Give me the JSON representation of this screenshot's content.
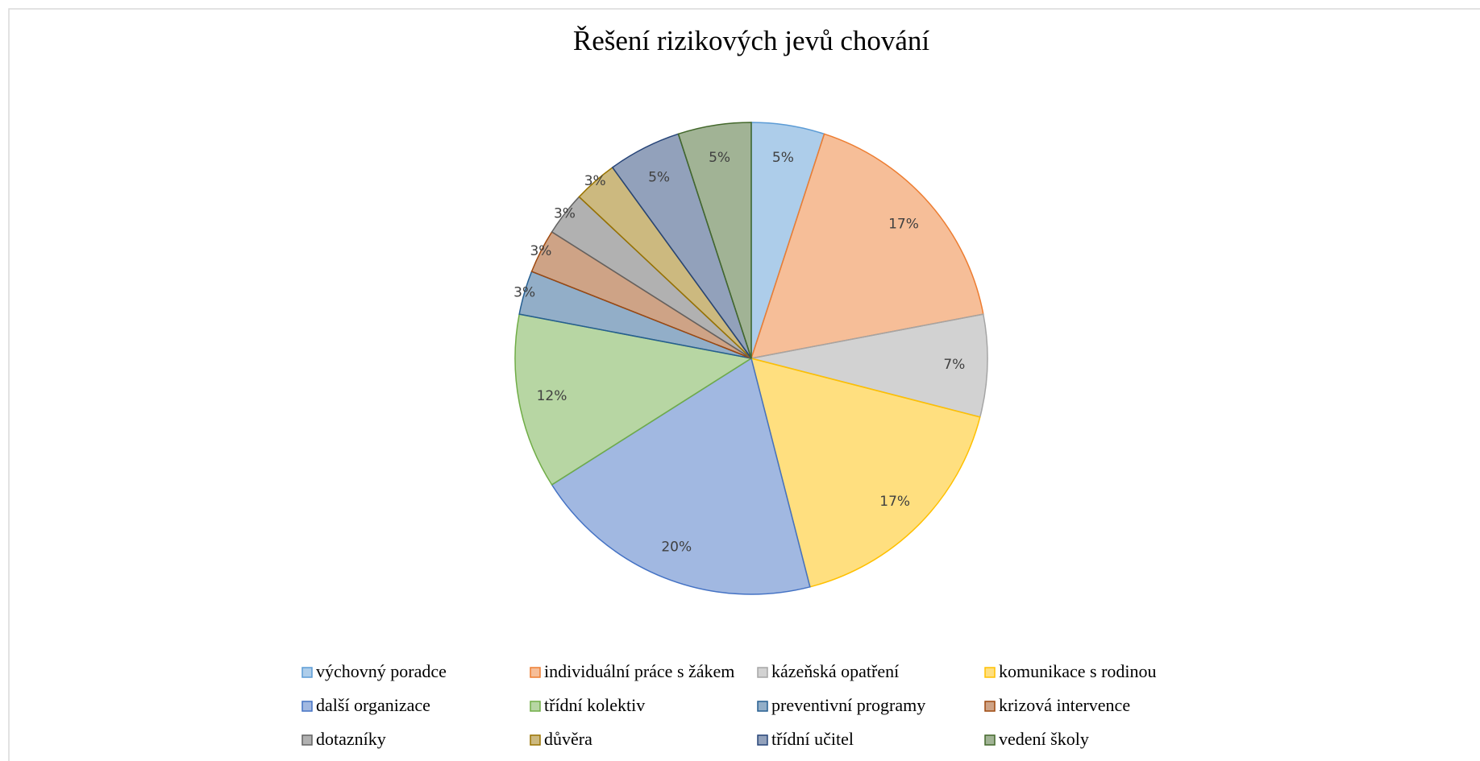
{
  "chart_data": {
    "type": "pie",
    "title": "Řešení rizikových jevů chování",
    "categories": [
      "výchovný poradce",
      "individuální práce s žákem",
      "kázeňská opatření",
      "komunikace s rodinou",
      "další organizace",
      "třídní kolektiv",
      "preventivní programy",
      "krizová intervence",
      "dotazníky",
      "důvěra",
      "třídní učitel",
      "vedení školy"
    ],
    "values": [
      5,
      17,
      7,
      17,
      20,
      12,
      3,
      3,
      3,
      3,
      5,
      5
    ],
    "value_labels": [
      "5%",
      "17%",
      "7%",
      "17%",
      "20%",
      "12%",
      "3%",
      "3%",
      "3%",
      "3%",
      "5%",
      "5%"
    ],
    "colors": [
      "#5b9bd5",
      "#ed7d31",
      "#a5a5a5",
      "#ffc000",
      "#4472c4",
      "#70ad47",
      "#255e91",
      "#9e480e",
      "#636363",
      "#997300",
      "#264478",
      "#43682b"
    ],
    "legend": "bottom"
  }
}
